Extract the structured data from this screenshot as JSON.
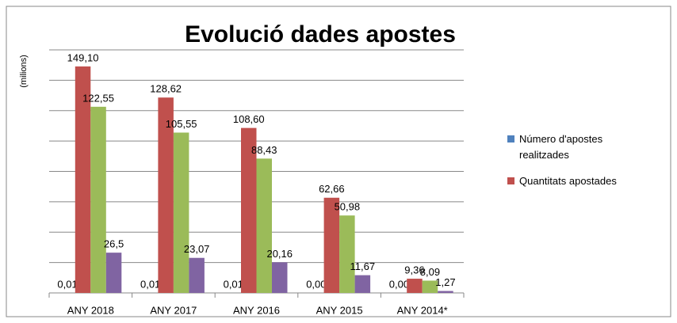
{
  "chart_data": {
    "type": "bar",
    "title": "Evolució dades apostes",
    "y_label": "(milions)",
    "categories": [
      "ANY 2018",
      "ANY 2017",
      "ANY 2016",
      "ANY 2015",
      "ANY 2014*"
    ],
    "series": [
      {
        "name": "Número d'apostes realitzades",
        "color": "#4f81bd",
        "values": [
          0.01,
          0.01,
          0.01,
          0.0,
          0.0
        ],
        "value_labels": [
          "0,01",
          "0,01",
          "0,01",
          "0,00",
          "0,00"
        ]
      },
      {
        "name": "Quantitats apostades",
        "color": "#c0504d",
        "values": [
          149.1,
          128.62,
          108.6,
          62.66,
          9.36
        ],
        "value_labels": [
          "149,10",
          "128,62",
          "108,60",
          "62,66",
          "9,36"
        ]
      },
      {
        "color": "#9bbb59",
        "values": [
          122.55,
          105.55,
          88.43,
          50.98,
          8.09
        ],
        "value_labels": [
          "122,55",
          "105,55",
          "88,43",
          "50,98",
          "8,09"
        ]
      },
      {
        "color": "#8064a2",
        "values": [
          26.5,
          23.07,
          20.16,
          11.67,
          1.27
        ],
        "value_labels": [
          "26,5",
          "23,07",
          "20,16",
          "11,67",
          "1,27"
        ]
      }
    ],
    "ylim": [
      0,
      160
    ],
    "yticks": [
      20,
      40,
      60,
      80,
      100,
      120,
      140,
      160
    ],
    "ytick_labels": false,
    "grid": true,
    "legend": "right"
  }
}
